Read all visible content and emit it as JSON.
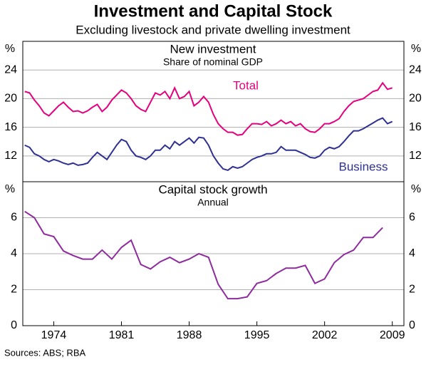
{
  "header": {
    "title": "Investment and Capital Stock",
    "subtitle": "Excluding livestock and private dwelling investment",
    "source": "Sources: ABS; RBA"
  },
  "chart_data": [
    {
      "type": "line",
      "title": "New investment",
      "subtitle": "Share of nominal GDP",
      "y_label": "%",
      "x": [
        1971,
        1971.5,
        1972,
        1972.5,
        1973,
        1973.5,
        1974,
        1974.5,
        1975,
        1975.5,
        1976,
        1976.5,
        1977,
        1977.5,
        1978,
        1978.5,
        1979,
        1979.5,
        1980,
        1980.5,
        1981,
        1981.5,
        1982,
        1982.5,
        1983,
        1983.5,
        1984,
        1984.5,
        1985,
        1985.5,
        1986,
        1986.5,
        1987,
        1987.5,
        1988,
        1988.5,
        1989,
        1989.5,
        1990,
        1990.5,
        1991,
        1991.5,
        1992,
        1992.5,
        1993,
        1993.5,
        1994,
        1994.5,
        1995,
        1995.5,
        1996,
        1996.5,
        1997,
        1997.5,
        1998,
        1998.5,
        1999,
        1999.5,
        2000,
        2000.5,
        2001,
        2001.5,
        2002,
        2002.5,
        2003,
        2003.5,
        2004,
        2004.5,
        2005,
        2005.5,
        2006,
        2006.5,
        2007,
        2007.5,
        2008,
        2008.5,
        2009
      ],
      "series": [
        {
          "name": "Total",
          "color": "#e6007e",
          "values": [
            21,
            20.8,
            19.8,
            19,
            18,
            17.6,
            18.3,
            19,
            19.5,
            18.8,
            18.2,
            18.3,
            18,
            18.3,
            18.8,
            19.2,
            18.2,
            18.8,
            19.8,
            20.5,
            21.2,
            20.8,
            20,
            19,
            18.5,
            18.2,
            19.5,
            20.8,
            20.5,
            21,
            20,
            21.5,
            20,
            20.3,
            21,
            19,
            19.5,
            20.3,
            19.5,
            17.8,
            16.5,
            15.8,
            15.3,
            15.3,
            14.9,
            15,
            15.8,
            16.5,
            16.5,
            16.4,
            16.8,
            16.2,
            16.5,
            17,
            16.5,
            16.8,
            16.2,
            16.5,
            15.8,
            15.4,
            15.3,
            15.8,
            16.5,
            16.5,
            16.8,
            17.2,
            18.2,
            19,
            19.6,
            19.8,
            20,
            20.5,
            21,
            21.2,
            22.2,
            21.3,
            21.5
          ]
        },
        {
          "name": "Business",
          "color": "#2e3192",
          "values": [
            13.5,
            13.2,
            12.3,
            12,
            11.5,
            11.2,
            11.5,
            11.3,
            11,
            10.8,
            11,
            10.7,
            10.8,
            11,
            11.8,
            12.5,
            12,
            11.5,
            12.5,
            13.5,
            14.3,
            14,
            12.8,
            12,
            11.8,
            11.5,
            12,
            12.8,
            12.8,
            13.5,
            13,
            14,
            13.5,
            14,
            14.5,
            13.8,
            14.6,
            14.5,
            13.5,
            12,
            11,
            10.2,
            10,
            10.5,
            10.3,
            10.5,
            11,
            11.5,
            11.8,
            12,
            12.3,
            12.3,
            12.5,
            13.3,
            12.8,
            12.8,
            12.8,
            12.5,
            12.2,
            11.8,
            11.7,
            12,
            12.8,
            13.2,
            13,
            13.3,
            14,
            14.8,
            15.5,
            15.5,
            15.8,
            16.2,
            16.6,
            17,
            17.3,
            16.5,
            16.8
          ]
        }
      ],
      "xlim": [
        1970.8,
        2010.2
      ],
      "ylim": [
        8.4,
        28
      ],
      "yticks": [
        12,
        16,
        20,
        24
      ],
      "grid": true
    },
    {
      "type": "line",
      "title": "Capital stock growth",
      "subtitle": "Annual",
      "y_label": "%",
      "x": [
        1971,
        1972,
        1973,
        1974,
        1975,
        1976,
        1977,
        1978,
        1979,
        1980,
        1981,
        1982,
        1983,
        1984,
        1985,
        1986,
        1987,
        1988,
        1989,
        1990,
        1991,
        1992,
        1993,
        1994,
        1995,
        1996,
        1997,
        1998,
        1999,
        2000,
        2001,
        2002,
        2003,
        2004,
        2005,
        2006,
        2007,
        2008
      ],
      "series": [
        {
          "color": "#8e2c9e",
          "values": [
            6.35,
            6.0,
            5.1,
            4.95,
            4.15,
            3.9,
            3.7,
            3.7,
            4.2,
            3.7,
            4.35,
            4.75,
            3.4,
            3.15,
            3.55,
            3.8,
            3.5,
            3.7,
            4.0,
            3.8,
            2.3,
            1.5,
            1.5,
            1.6,
            2.35,
            2.5,
            2.9,
            3.2,
            3.2,
            3.35,
            2.35,
            2.6,
            3.5,
            3.95,
            4.2,
            4.9,
            4.9,
            5.45
          ]
        }
      ],
      "xlim": [
        1970.8,
        2010.2
      ],
      "ylim": [
        0,
        8
      ],
      "yticks": [
        0,
        2,
        4,
        6
      ],
      "grid": true,
      "xticks": [
        1974,
        1981,
        1988,
        1995,
        2002,
        2009
      ]
    }
  ]
}
